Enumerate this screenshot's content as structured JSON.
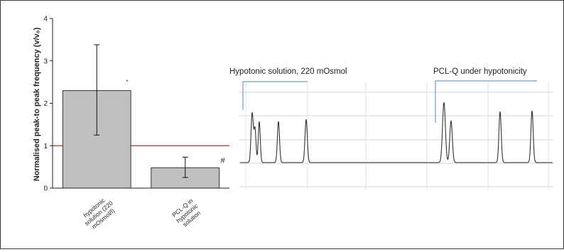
{
  "chart_data": [
    {
      "type": "bar",
      "categories": [
        "hypotonic solution (220 mOsmol/l)",
        "PCL-Q in hypotonic solution"
      ],
      "category_lines": [
        [
          "hypotonic",
          "solution (220",
          "mOsmol/l)"
        ],
        [
          "PCL-Q in",
          "hypotonic",
          "solution"
        ]
      ],
      "values": [
        2.3,
        0.48
      ],
      "error_low": [
        1.25,
        0.25
      ],
      "error_high": [
        3.38,
        0.73
      ],
      "markers": [
        "*",
        "#"
      ],
      "ylabel": "Normalised peak-to peak frequency (v/v₀)",
      "ylim": [
        0,
        4
      ],
      "yticks": [
        "0",
        "1",
        "2",
        "3",
        "4"
      ],
      "reference_line": 1,
      "reference_color": "#e02020",
      "bar_color": "#c0c0c0"
    },
    {
      "type": "line",
      "annotations": [
        "Hypotonic solution, 220 mOsmol",
        "PCL-Q under hypotonicity"
      ],
      "line_color": "#333333",
      "annotation_color": "#6d9bd0"
    }
  ]
}
